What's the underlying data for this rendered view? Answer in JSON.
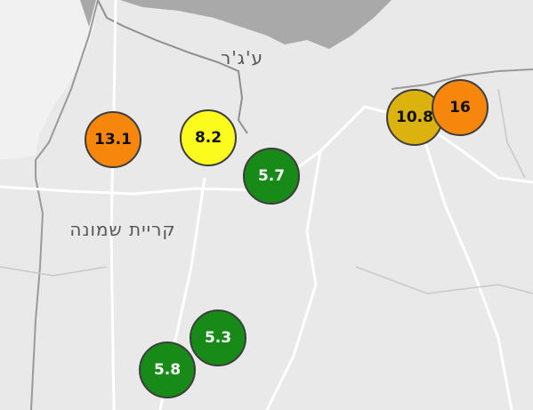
{
  "places": [
    "ע'ג'ר",
    "קריית שמונה"
  ],
  "markers": [
    {
      "value": 13.1,
      "color": "#f7870c"
    },
    {
      "value": 8.2,
      "color": "#fbfb1e"
    },
    {
      "value": 5.7,
      "color": "#178a17"
    },
    {
      "value": 10.8,
      "color": "#dcb20e"
    },
    {
      "value": 16,
      "color": "#f7870c"
    },
    {
      "value": 5.3,
      "color": "#178a17"
    },
    {
      "value": 5.8,
      "color": "#178a17"
    }
  ]
}
